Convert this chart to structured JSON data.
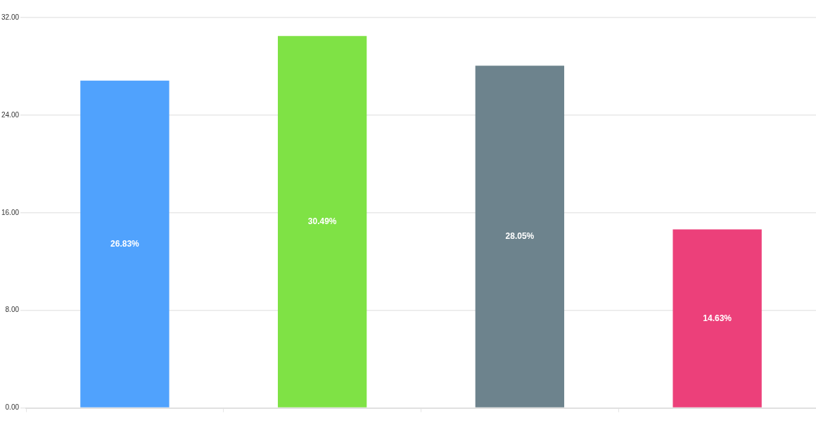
{
  "chart_data": {
    "type": "bar",
    "categories": [
      null,
      null,
      null,
      null
    ],
    "values": [
      26.83,
      30.49,
      28.05,
      14.63
    ],
    "colors": [
      "#50a2fd",
      "#7fe245",
      "#6d838d",
      "#ec407a"
    ],
    "value_labels": [
      "26.83%",
      "30.49%",
      "28.05%",
      "14.63%"
    ],
    "ylim": [
      0,
      32
    ],
    "yticks": [
      {
        "value": 0,
        "label": "0.00"
      },
      {
        "value": 8,
        "label": "8.00"
      },
      {
        "value": 16,
        "label": "16.00"
      },
      {
        "value": 24,
        "label": "24.00"
      },
      {
        "value": 32,
        "label": "32.00"
      }
    ],
    "grid": "y",
    "legend": false
  }
}
